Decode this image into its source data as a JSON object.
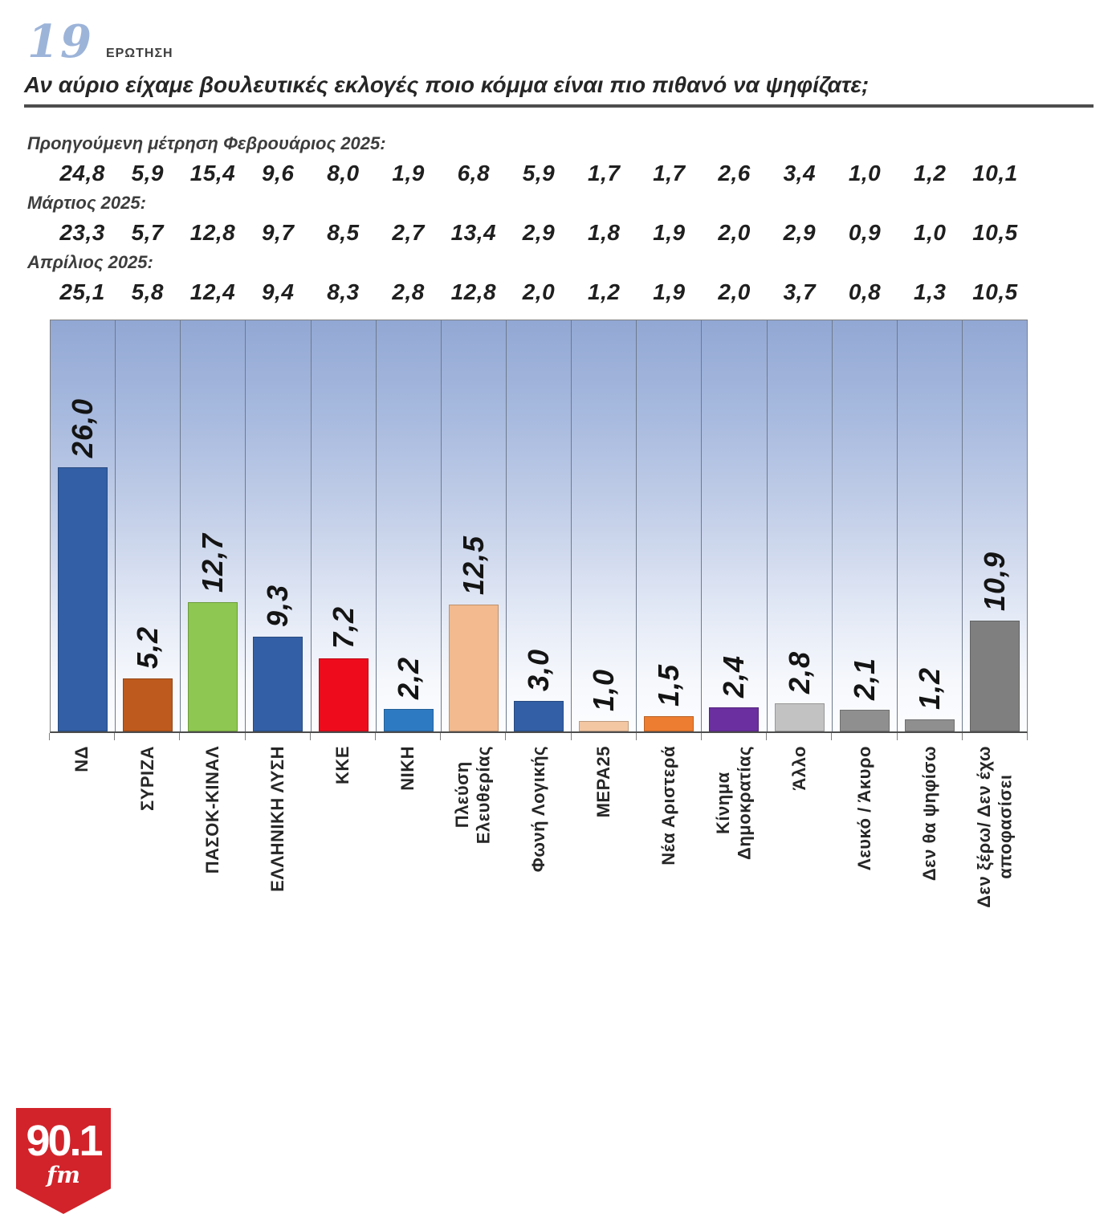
{
  "header": {
    "question_number": "19",
    "question_label": "ΕΡΩΤΗΣΗ",
    "question": "Αν αύριο είχαμε βουλευτικές εκλογές ποιο κόμμα είναι πιο πιθανό να ψηφίζατε;"
  },
  "previous_measurements": [
    {
      "label": "Προηγούμενη μέτρηση Φεβρουάριος 2025:",
      "values": [
        "24,8",
        "5,9",
        "15,4",
        "9,6",
        "8,0",
        "1,9",
        "6,8",
        "5,9",
        "1,7",
        "1,7",
        "2,6",
        "3,4",
        "1,0",
        "1,2",
        "10,1"
      ]
    },
    {
      "label": "Μάρτιος 2025:",
      "values": [
        "23,3",
        "5,7",
        "12,8",
        "9,7",
        "8,5",
        "2,7",
        "13,4",
        "2,9",
        "1,8",
        "1,9",
        "2,0",
        "2,9",
        "0,9",
        "1,0",
        "10,5"
      ]
    },
    {
      "label": "Απρίλιος 2025:",
      "values": [
        "25,1",
        "5,8",
        "12,4",
        "9,4",
        "8,3",
        "2,8",
        "12,8",
        "2,0",
        "1,2",
        "1,9",
        "2,0",
        "3,7",
        "0,8",
        "1,3",
        "10,5"
      ]
    }
  ],
  "chart_data": {
    "type": "bar",
    "title": "",
    "xlabel": "",
    "ylabel": "",
    "ylim": [
      0,
      40.5
    ],
    "grid": "vertical gridlines between categories",
    "legend": "none",
    "plot_background": "linear gradient, periwinkle blue at top fading to white at bottom",
    "value_label_style": "bold italic, rotated 90deg reading bottom-to-top, above each bar",
    "category_label_style": "bold, rotated 90deg reading bottom-to-top, hanging below axis",
    "categories": [
      "ΝΔ",
      "ΣΥΡΙΖΑ",
      "ΠΑΣΟΚ-ΚΙΝΑΛ",
      "ΕΛΛΗΝΙΚΗ ΛΥΣΗ",
      "ΚΚΕ",
      "ΝΙΚΗ",
      "Πλεύση\nΕλευθερίας",
      "Φωνή Λογικής",
      "ΜΕΡΑ25",
      "Νέα Αριστερά",
      "Κίνημα\nΔημοκρατίας",
      "Άλλο",
      "Λευκό / Άκυρο",
      "Δεν θα ψηφίσω",
      "Δεν ξέρω/ Δεν έχω\nαποφασίσει"
    ],
    "values": [
      26.0,
      5.2,
      12.7,
      9.3,
      7.2,
      2.2,
      12.5,
      3.0,
      1.0,
      1.5,
      2.4,
      2.8,
      2.1,
      1.2,
      10.9
    ],
    "value_labels": [
      "26,0",
      "5,2",
      "12,7",
      "9,3",
      "7,2",
      "2,2",
      "12,5",
      "3,0",
      "1,0",
      "1,5",
      "2,4",
      "2,8",
      "2,1",
      "1,2",
      "10,9"
    ],
    "bar_colors": [
      "#325fa5",
      "#be5a1d",
      "#8ec751",
      "#325fa5",
      "#ee0c1c",
      "#2e7ac2",
      "#f2ba8e",
      "#325fa5",
      "#f3c7a2",
      "#ed7d31",
      "#6b2fa0",
      "#c2c2c2",
      "#8f8f8f",
      "#8f8f8f",
      "#7f7f7f"
    ]
  },
  "branding": {
    "station": "90.1",
    "band": "fm",
    "logo_color": "#d2232a"
  }
}
